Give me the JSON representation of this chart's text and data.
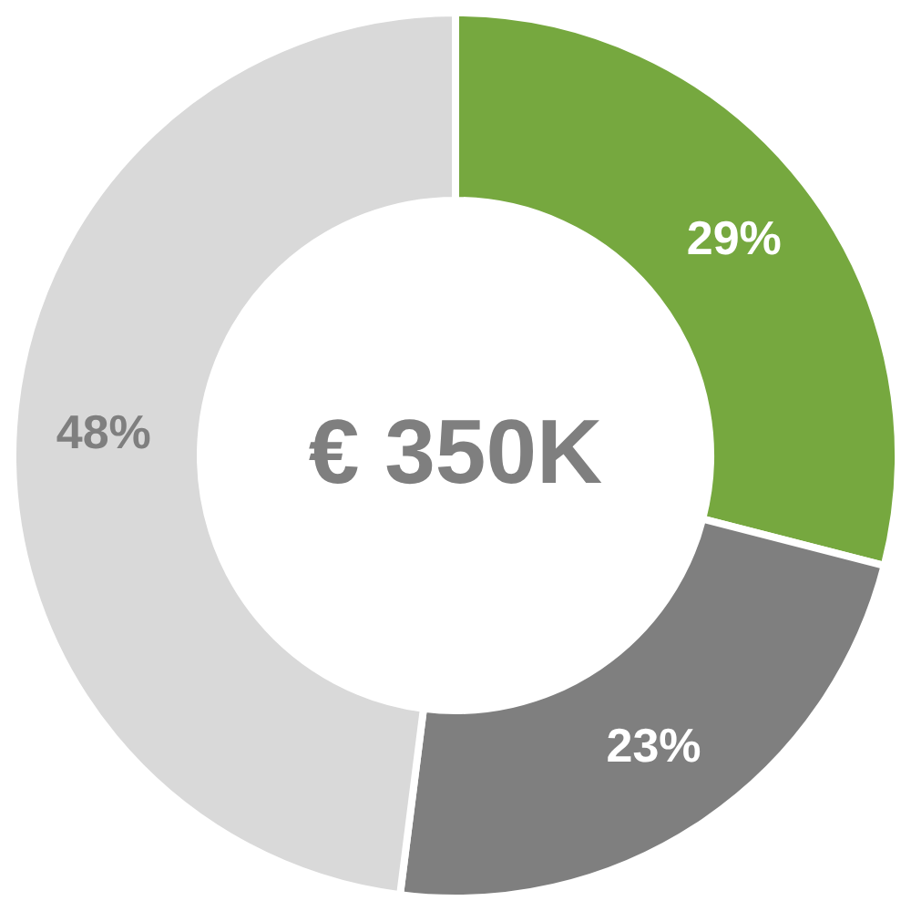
{
  "chart_data": {
    "type": "donut",
    "categories": [
      null,
      null,
      null
    ],
    "values": [
      29,
      23,
      48
    ],
    "colors": [
      "#76a83f",
      "#7f7f7f",
      "#d9d9d9"
    ],
    "value_labels": [
      "29%",
      "23%",
      "48%"
    ],
    "annotations": [
      "€ 350K"
    ]
  }
}
